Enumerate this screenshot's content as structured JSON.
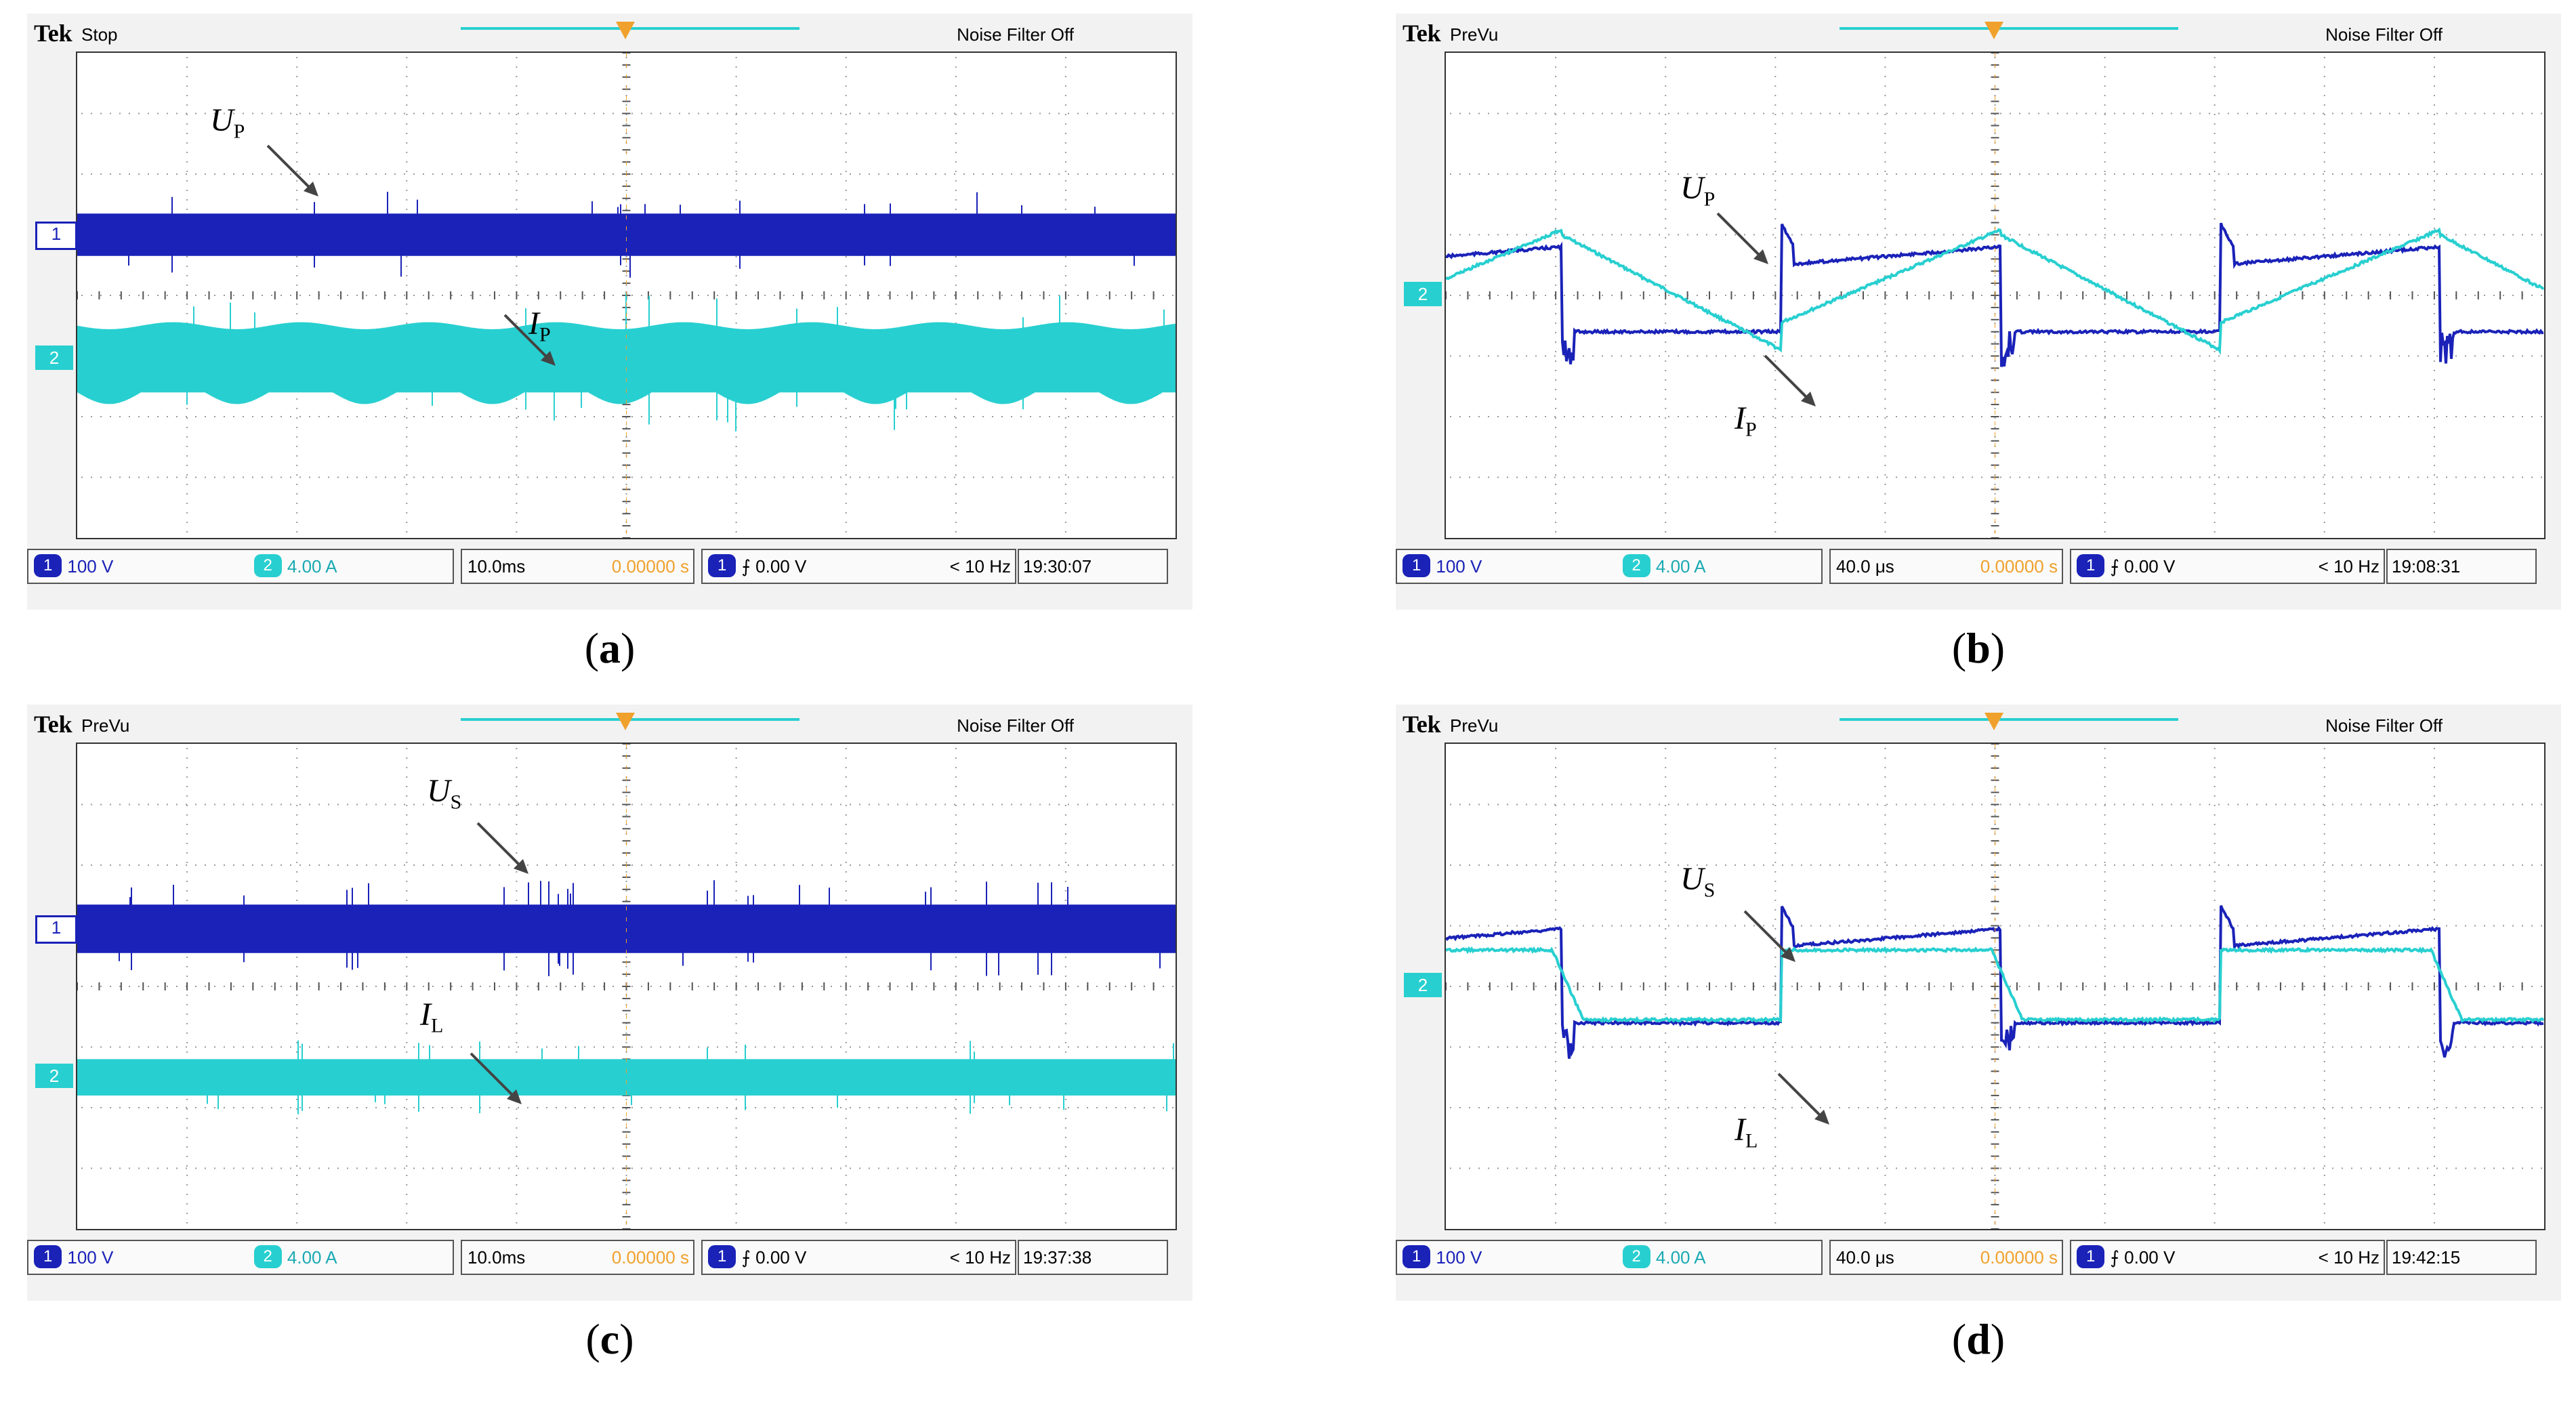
{
  "panels": [
    {
      "id": "a",
      "brand": "Tek",
      "status": "Stop",
      "noise_filter": "Noise Filter Off",
      "ch1_scale": "100 V",
      "ch2_scale": "4.00 A",
      "timebase": "10.0ms",
      "trigger_pos": "0.00000 s",
      "trigger_level": "0.00 V",
      "trigger_freq": "< 10 Hz",
      "time": "19:30:07",
      "caption_letter": "a",
      "label1_main": "U",
      "label1_sub": "P",
      "label2_main": "I",
      "label2_sub": "P",
      "ch1_marker": "1",
      "ch2_marker": "2"
    },
    {
      "id": "b",
      "brand": "Tek",
      "status": "PreVu",
      "noise_filter": "Noise Filter Off",
      "ch1_scale": "100 V",
      "ch2_scale": "4.00 A",
      "timebase": "40.0 μs",
      "trigger_pos": "0.00000 s",
      "trigger_level": "0.00 V",
      "trigger_freq": "< 10 Hz",
      "time": "19:08:31",
      "caption_letter": "b",
      "label1_main": "U",
      "label1_sub": "P",
      "label2_main": "I",
      "label2_sub": "P",
      "ch1_marker": "",
      "ch2_marker": "2"
    },
    {
      "id": "c",
      "brand": "Tek",
      "status": "PreVu",
      "noise_filter": "Noise Filter Off",
      "ch1_scale": "100 V",
      "ch2_scale": "4.00 A",
      "timebase": "10.0ms",
      "trigger_pos": "0.00000 s",
      "trigger_level": "0.00 V",
      "trigger_freq": "< 10 Hz",
      "time": "19:37:38",
      "caption_letter": "c",
      "label1_main": "U",
      "label1_sub": "S",
      "label2_main": "I",
      "label2_sub": "L",
      "ch1_marker": "1",
      "ch2_marker": "2"
    },
    {
      "id": "d",
      "brand": "Tek",
      "status": "PreVu",
      "noise_filter": "Noise Filter Off",
      "ch1_scale": "100 V",
      "ch2_scale": "4.00 A",
      "timebase": "40.0 μs",
      "trigger_pos": "0.00000 s",
      "trigger_level": "0.00 V",
      "trigger_freq": "< 10 Hz",
      "time": "19:42:15",
      "caption_letter": "d",
      "label1_main": "U",
      "label1_sub": "S",
      "label2_main": "I",
      "label2_sub": "L",
      "ch1_marker": "",
      "ch2_marker": "2"
    }
  ],
  "colors": {
    "ch1": "#1a22b8",
    "ch2": "#28cfd0",
    "trigger": "#f0a12d",
    "grid": "#9a9a9a"
  },
  "chart_data": [
    {
      "panel": "a",
      "type": "line",
      "grid": true,
      "divisions_x": 10,
      "divisions_y": 8,
      "series": [
        {
          "name": "U_P",
          "style": "dense-noise band",
          "center_div": 1.0,
          "halfwidth_div": 0.35
        },
        {
          "name": "I_P",
          "style": "dense-noise band",
          "center_div": -1.05,
          "halfwidth_div": 0.55
        }
      ]
    },
    {
      "panel": "b",
      "type": "line",
      "grid": true,
      "divisions_x": 10,
      "divisions_y": 8,
      "series": [
        {
          "name": "U_P",
          "style": "square wave with ringing",
          "high_div": 0.8,
          "low_div": -0.6,
          "period_div": 4.0
        },
        {
          "name": "I_P",
          "style": "sawtooth",
          "high_div": 1.0,
          "low_div": -0.9,
          "period_div": 4.0
        }
      ]
    },
    {
      "panel": "c",
      "type": "line",
      "grid": true,
      "divisions_x": 10,
      "divisions_y": 8,
      "series": [
        {
          "name": "U_S",
          "style": "dense-noise band",
          "center_div": 0.95,
          "halfwidth_div": 0.4
        },
        {
          "name": "I_L",
          "style": "dense-noise band",
          "center_div": -1.5,
          "halfwidth_div": 0.3
        }
      ]
    },
    {
      "panel": "d",
      "type": "line",
      "grid": true,
      "divisions_x": 10,
      "divisions_y": 8,
      "series": [
        {
          "name": "U_S",
          "style": "square wave with ringing",
          "high_div": 0.95,
          "low_div": -0.6,
          "period_div": 4.0
        },
        {
          "name": "I_L",
          "style": "trapezoid",
          "high_div": 0.6,
          "low_div": -0.55,
          "period_div": 4.0
        }
      ]
    }
  ]
}
